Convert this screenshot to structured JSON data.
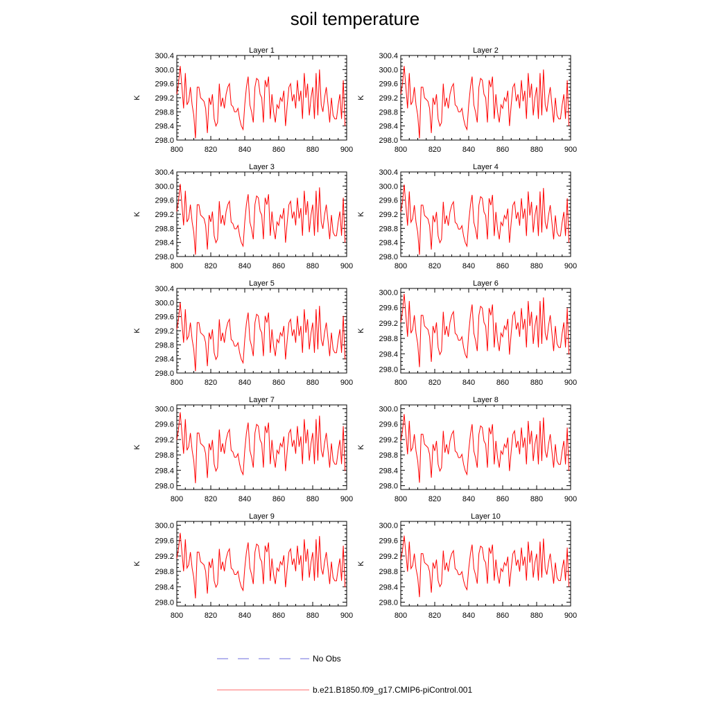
{
  "title": "soil temperature",
  "colors": {
    "series": "#ff0000",
    "obs": "#6b6bdc",
    "axis": "#000000"
  },
  "legend": [
    {
      "label": "No Obs",
      "style": "dashed",
      "color": "#6b6bdc"
    },
    {
      "label": "b.e21.B1850.f09_g17.CMIP6-piControl.001",
      "style": "solid",
      "color": "#ff0000"
    }
  ],
  "chart_data": {
    "type": "line",
    "xlim": [
      800,
      900
    ],
    "xticks": [
      800,
      820,
      840,
      860,
      880,
      900
    ],
    "ylabel": "K",
    "series_name": "b.e21.B1850.f09_g17.CMIP6-piControl.001",
    "x": [
      800,
      801,
      802,
      803,
      804,
      805,
      806,
      807,
      808,
      809,
      810,
      811,
      812,
      813,
      814,
      815,
      816,
      817,
      818,
      819,
      820,
      821,
      822,
      823,
      824,
      825,
      826,
      827,
      828,
      829,
      830,
      831,
      832,
      833,
      834,
      835,
      836,
      837,
      838,
      839,
      840,
      841,
      842,
      843,
      844,
      845,
      846,
      847,
      848,
      849,
      850,
      851,
      852,
      853,
      854,
      855,
      856,
      857,
      858,
      859,
      860,
      861,
      862,
      863,
      864,
      865,
      866,
      867,
      868,
      869,
      870,
      871,
      872,
      873,
      874,
      875,
      876,
      877,
      878,
      879,
      880,
      881,
      882,
      883,
      884,
      885,
      886,
      887,
      888,
      889,
      890,
      891,
      892,
      893,
      894,
      895,
      896,
      897,
      898,
      899
    ],
    "panels": [
      {
        "title": "Layer 1",
        "ylim": [
          298.0,
          300.4
        ],
        "yticks": [
          "298.0",
          "298.4",
          "298.8",
          "299.2",
          "299.6",
          "300.0",
          "300.4"
        ],
        "offset": 0.0,
        "amp": 1.0
      },
      {
        "title": "Layer 2",
        "ylim": [
          298.0,
          300.4
        ],
        "yticks": [
          "298.0",
          "298.4",
          "298.8",
          "299.2",
          "299.6",
          "300.0",
          "300.4"
        ],
        "offset": 0.0,
        "amp": 1.0
      },
      {
        "title": "Layer 3",
        "ylim": [
          298.0,
          300.4
        ],
        "yticks": [
          "298.0",
          "298.4",
          "298.8",
          "299.2",
          "299.6",
          "300.0",
          "300.4"
        ],
        "offset": -0.02,
        "amp": 0.98
      },
      {
        "title": "Layer 4",
        "ylim": [
          298.0,
          300.4
        ],
        "yticks": [
          "298.0",
          "298.4",
          "298.8",
          "299.2",
          "299.6",
          "300.0",
          "300.4"
        ],
        "offset": -0.03,
        "amp": 0.97
      },
      {
        "title": "Layer 5",
        "ylim": [
          298.0,
          300.4
        ],
        "yticks": [
          "298.0",
          "298.4",
          "298.8",
          "299.2",
          "299.6",
          "300.0",
          "300.4"
        ],
        "offset": -0.05,
        "amp": 0.95
      },
      {
        "title": "Layer 6",
        "ylim": [
          297.9,
          300.1
        ],
        "yticks": [
          "298.0",
          "298.4",
          "298.8",
          "299.2",
          "299.6",
          "300.0"
        ],
        "offset": -0.07,
        "amp": 0.93
      },
      {
        "title": "Layer 7",
        "ylim": [
          297.9,
          300.1
        ],
        "yticks": [
          "298.0",
          "298.4",
          "298.8",
          "299.2",
          "299.6",
          "300.0"
        ],
        "offset": -0.09,
        "amp": 0.9
      },
      {
        "title": "Layer 8",
        "ylim": [
          297.9,
          300.1
        ],
        "yticks": [
          "298.0",
          "298.4",
          "298.8",
          "299.2",
          "299.6",
          "300.0"
        ],
        "offset": -0.11,
        "amp": 0.87
      },
      {
        "title": "Layer 9",
        "ylim": [
          297.9,
          300.1
        ],
        "yticks": [
          "298.0",
          "298.4",
          "298.8",
          "299.2",
          "299.6",
          "300.0"
        ],
        "offset": -0.13,
        "amp": 0.83
      },
      {
        "title": "Layer 10",
        "ylim": [
          297.9,
          300.1
        ],
        "yticks": [
          "298.0",
          "298.4",
          "298.8",
          "299.2",
          "299.6",
          "300.0"
        ],
        "offset": -0.15,
        "amp": 0.78
      }
    ],
    "base_values": [
      299.3,
      299.6,
      300.1,
      299.5,
      298.9,
      299.9,
      299.0,
      299.1,
      299.5,
      299.0,
      298.7,
      298.05,
      299.5,
      299.5,
      299.2,
      299.15,
      299.1,
      298.9,
      298.2,
      299.2,
      299.0,
      299.3,
      298.6,
      298.4,
      298.5,
      299.6,
      298.95,
      299.2,
      298.9,
      299.3,
      299.5,
      299.6,
      299.0,
      298.95,
      298.8,
      298.8,
      298.9,
      298.6,
      298.4,
      298.3,
      299.0,
      299.5,
      299.8,
      299.0,
      298.8,
      298.5,
      299.5,
      299.75,
      299.7,
      299.3,
      299.2,
      298.5,
      299.7,
      299.5,
      299.8,
      298.6,
      299.3,
      298.8,
      298.5,
      299.0,
      298.9,
      299.2,
      299.1,
      299.4,
      298.4,
      299.0,
      299.5,
      299.6,
      299.1,
      299.3,
      298.9,
      299.7,
      299.1,
      299.4,
      298.6,
      299.9,
      299.2,
      299.6,
      298.7,
      299.2,
      299.5,
      298.6,
      299.9,
      298.7,
      300.0,
      299.0,
      298.8,
      299.2,
      299.5,
      299.0,
      298.5,
      299.2,
      298.7,
      298.6,
      298.6,
      299.0,
      299.3,
      298.6,
      299.7,
      298.4
    ]
  }
}
